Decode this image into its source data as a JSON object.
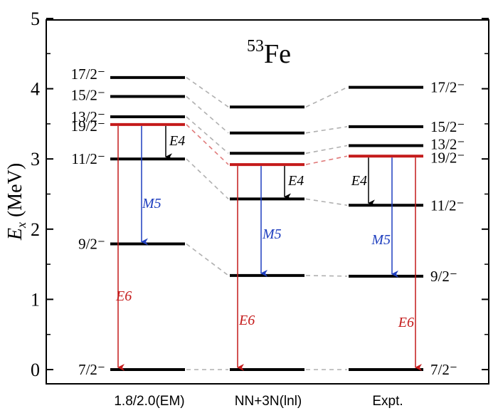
{
  "chart_data": {
    "type": "level-scheme",
    "title_superscript": "53",
    "title_main": "Fe",
    "ylabel_main": "E",
    "ylabel_sub": "x",
    "ylabel_unit": " (MeV)",
    "ylim": [
      0,
      5
    ],
    "yticks": [
      "0",
      "1",
      "2",
      "3",
      "4",
      "5"
    ],
    "colors": {
      "level": "#000000",
      "highlight": "#c41a1a",
      "m5": "#1f3fbf",
      "e4": "#000000",
      "connector": "#b0b0b0"
    },
    "columns": [
      {
        "name": "1.8/2.0(EM)",
        "levels": [
          {
            "spin": "7/2⁻",
            "energy": 0.0
          },
          {
            "spin": "9/2⁻",
            "energy": 1.79
          },
          {
            "spin": "11/2⁻",
            "energy": 3.0
          },
          {
            "spin": "19/2⁻",
            "energy": 3.49,
            "highlight": true
          },
          {
            "spin": "13/2⁻",
            "energy": 3.6
          },
          {
            "spin": "15/2⁻",
            "energy": 3.89
          },
          {
            "spin": "17/2⁻",
            "energy": 4.16
          }
        ],
        "transitions": [
          {
            "label": "E6",
            "from": 3.49,
            "to": 0.0
          },
          {
            "label": "M5",
            "from": 3.49,
            "to": 1.79
          },
          {
            "label": "E4",
            "from": 3.49,
            "to": 3.0
          }
        ]
      },
      {
        "name": "NN+3N(lnl)",
        "levels": [
          {
            "energy": 0.0
          },
          {
            "energy": 1.34
          },
          {
            "energy": 2.43
          },
          {
            "energy": 2.92,
            "highlight": true
          },
          {
            "energy": 3.08
          },
          {
            "energy": 3.37
          },
          {
            "energy": 3.74
          }
        ],
        "transitions": [
          {
            "label": "E6",
            "from": 2.92,
            "to": 0.0
          },
          {
            "label": "M5",
            "from": 2.92,
            "to": 1.34
          },
          {
            "label": "E4",
            "from": 2.92,
            "to": 2.43
          }
        ]
      },
      {
        "name": "Expt.",
        "levels": [
          {
            "spin": "7/2⁻",
            "energy": 0.0
          },
          {
            "spin": "9/2⁻",
            "energy": 1.33
          },
          {
            "spin": "11/2⁻",
            "energy": 2.34
          },
          {
            "spin": "19/2⁻",
            "energy": 3.04,
            "highlight": true
          },
          {
            "spin": "13/2⁻",
            "energy": 3.19
          },
          {
            "spin": "15/2⁻",
            "energy": 3.46
          },
          {
            "spin": "17/2⁻",
            "energy": 4.02
          }
        ],
        "transitions": [
          {
            "label": "E6",
            "from": 3.04,
            "to": 0.0
          },
          {
            "label": "M5",
            "from": 3.04,
            "to": 1.33
          },
          {
            "label": "E4",
            "from": 3.04,
            "to": 2.34
          }
        ]
      }
    ]
  }
}
